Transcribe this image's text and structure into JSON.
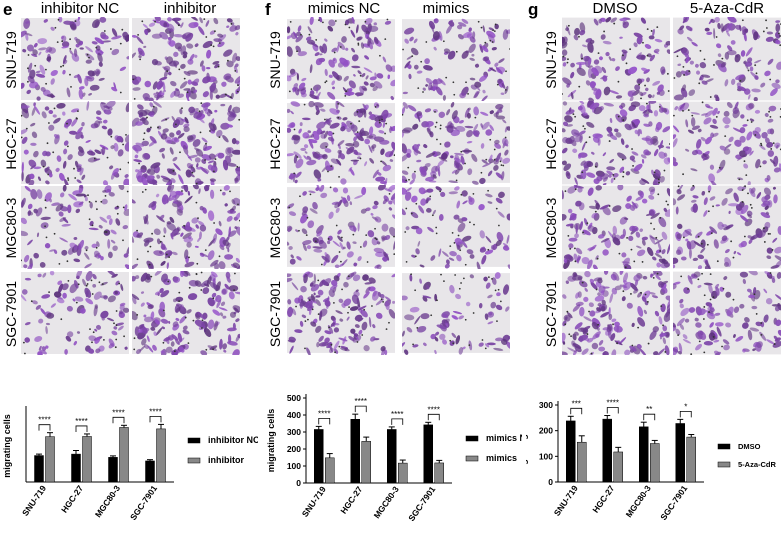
{
  "panels": [
    {
      "label": "e",
      "columns": [
        "inhibitor NC",
        "inhibitor"
      ],
      "rows": [
        "SNU-719",
        "HGC-27",
        "MGC80-3",
        "SGC-7901"
      ],
      "image_density": [
        [
          0.55,
          0.85
        ],
        [
          0.6,
          0.95
        ],
        [
          0.5,
          0.7
        ],
        [
          0.45,
          0.9
        ]
      ],
      "chart_data": {
        "type": "bar",
        "categories": [
          "SNU-719",
          "HGC-27",
          "MGC80-3",
          "SGC-7901"
        ],
        "series": [
          {
            "name": "inhibitor NC",
            "values": [
              147,
              155,
              137,
              117
            ],
            "errors": [
              8,
              20,
              8,
              7
            ],
            "color": "#000000"
          },
          {
            "name": "inhibitor",
            "values": [
              252,
              253,
              303,
              295
            ],
            "errors": [
              22,
              14,
              12,
              25
            ],
            "color": "#888888"
          }
        ],
        "significance": [
          "****",
          "****",
          "****",
          "****"
        ],
        "ylabel": "migrating cells",
        "ylim": [
          0,
          400
        ],
        "ticks": [],
        "legend": "right"
      }
    },
    {
      "label": "f",
      "columns": [
        "mimics NC",
        "mimics"
      ],
      "rows": [
        "SNU-719",
        "HGC-27",
        "MGC80-3",
        "SGC-7901"
      ],
      "image_density": [
        [
          0.7,
          0.5
        ],
        [
          0.95,
          0.75
        ],
        [
          0.6,
          0.35
        ],
        [
          0.8,
          0.3
        ]
      ],
      "chart_data": {
        "type": "bar",
        "categories": [
          "SNU-719",
          "HGC-27",
          "MGC80-3",
          "SGC-7901"
        ],
        "series": [
          {
            "name": "mimics NC",
            "values": [
              315,
              375,
              315,
              342
            ],
            "errors": [
              18,
              30,
              15,
              15
            ],
            "color": "#000000"
          },
          {
            "name": "mimics",
            "values": [
              148,
              245,
              117,
              118
            ],
            "errors": [
              25,
              25,
              18,
              15
            ],
            "color": "#888888"
          }
        ],
        "significance": [
          "****",
          "****",
          "****",
          "****"
        ],
        "ylabel": "migrating cells",
        "ylim": [
          0,
          500
        ],
        "ticks": [
          "0",
          "100",
          "200",
          "300",
          "400",
          "500"
        ],
        "legend": "right"
      }
    },
    {
      "label": "g",
      "columns": [
        "DMSO",
        "5-Aza-CdR"
      ],
      "rows": [
        "SNU-719",
        "HGC-27",
        "MGC80-3",
        "SGC-7901"
      ],
      "image_density": [
        [
          0.6,
          0.55
        ],
        [
          0.85,
          0.5
        ],
        [
          0.65,
          0.55
        ],
        [
          0.95,
          0.6
        ]
      ],
      "chart_data": {
        "type": "bar",
        "categories": [
          "SNU-719",
          "HGC-27",
          "MGC80-3",
          "SGC-7901"
        ],
        "series": [
          {
            "name": "DMSO",
            "values": [
              238,
              245,
              215,
              228
            ],
            "errors": [
              18,
              14,
              18,
              16
            ],
            "color": "#000000"
          },
          {
            "name": "5-Aza-CdR",
            "values": [
              155,
              117,
              150,
              175
            ],
            "errors": [
              25,
              18,
              12,
              10
            ],
            "color": "#888888"
          }
        ],
        "significance": [
          "***",
          "****",
          "**",
          "*"
        ],
        "ylabel": "migrating cells",
        "ylim": [
          0,
          300
        ],
        "ticks": [
          "0",
          "100",
          "200",
          "300"
        ],
        "legend": "right"
      }
    }
  ]
}
